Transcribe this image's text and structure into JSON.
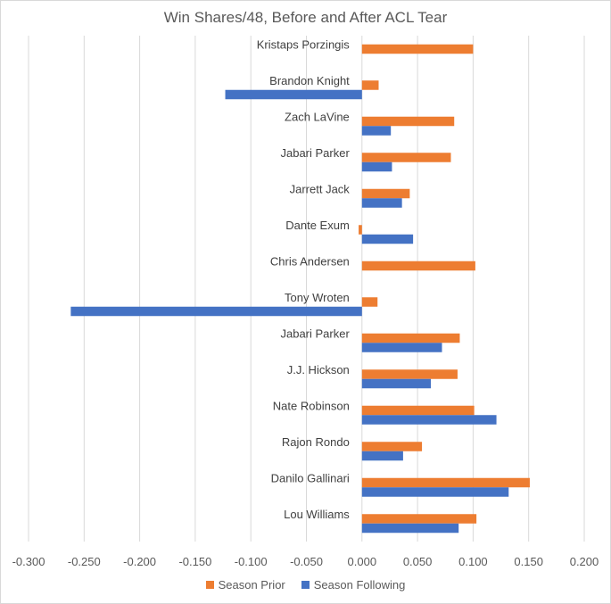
{
  "chart_data": {
    "type": "bar",
    "orientation": "horizontal",
    "title": "Win Shares/48, Before and After ACL Tear",
    "categories": [
      "Kristaps Porzingis",
      "Brandon Knight",
      "Zach LaVine",
      "Jabari Parker",
      "Jarrett Jack",
      "Dante Exum",
      "Chris Andersen",
      "Tony Wroten",
      "Jabari Parker",
      "J.J. Hickson",
      "Nate Robinson",
      "Rajon Rondo",
      "Danilo Gallinari",
      "Lou Williams"
    ],
    "series": [
      {
        "name": "Season Prior",
        "color": "#ED7D31",
        "values": [
          0.1,
          0.015,
          0.083,
          0.08,
          0.043,
          -0.003,
          0.102,
          0.014,
          0.088,
          0.086,
          0.101,
          0.054,
          0.151,
          0.103
        ]
      },
      {
        "name": "Season Following",
        "color": "#4472C4",
        "values": [
          null,
          -0.123,
          0.026,
          0.027,
          0.036,
          0.046,
          null,
          -0.262,
          0.072,
          0.062,
          0.121,
          0.037,
          0.132,
          0.087
        ]
      }
    ],
    "xlim": [
      -0.3,
      0.2
    ],
    "xticks": [
      "-0.300",
      "-0.250",
      "-0.200",
      "-0.150",
      "-0.100",
      "-0.050",
      "0.000",
      "0.050",
      "0.100",
      "0.150",
      "0.200"
    ],
    "tick_values": [
      -0.3,
      -0.25,
      -0.2,
      -0.15,
      -0.1,
      -0.05,
      0,
      0.05,
      0.1,
      0.15,
      0.2
    ],
    "grid": true,
    "legend_position": "bottom",
    "xlabel": "",
    "ylabel": ""
  }
}
